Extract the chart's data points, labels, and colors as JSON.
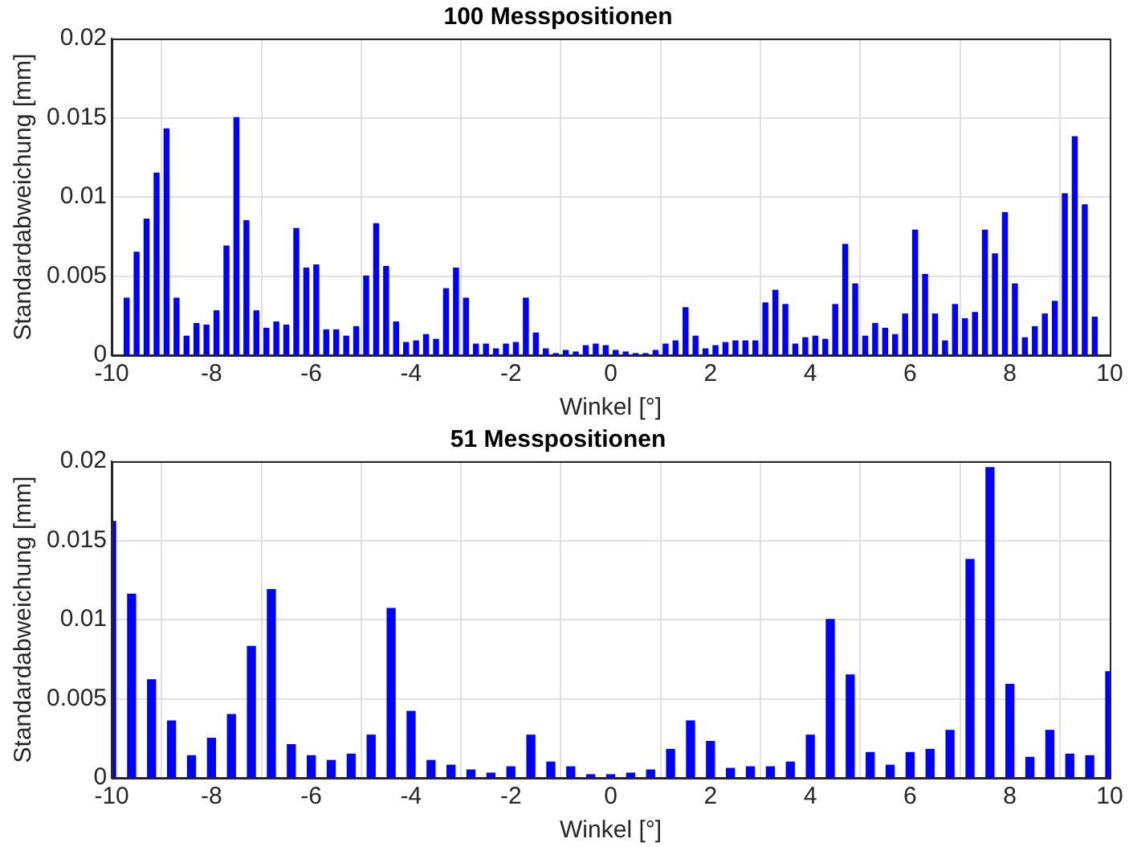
{
  "chart_data": [
    {
      "type": "bar",
      "title": "100 Messpositionen",
      "xlabel": "Winkel [°]",
      "ylabel": "Standardabweichung [mm]",
      "color": "#0000ff",
      "grid": true,
      "x": [
        -9.7,
        -9.5,
        -9.3,
        -9.1,
        -8.9,
        -8.7,
        -8.5,
        -8.3,
        -8.1,
        -7.9,
        -7.7,
        -7.5,
        -7.3,
        -7.1,
        -6.9,
        -6.7,
        -6.5,
        -6.3,
        -6.1,
        -5.9,
        -5.7,
        -5.5,
        -5.3,
        -5.1,
        -4.9,
        -4.7,
        -4.5,
        -4.3,
        -4.1,
        -3.9,
        -3.7,
        -3.5,
        -3.3,
        -3.1,
        -2.9,
        -2.7,
        -2.5,
        -2.3,
        -2.1,
        -1.9,
        -1.7,
        -1.5,
        -1.3,
        -1.1,
        -0.9,
        -0.7,
        -0.5,
        -0.3,
        -0.1,
        0.1,
        0.3,
        0.5,
        0.7,
        0.9,
        1.1,
        1.3,
        1.5,
        1.7,
        1.9,
        2.1,
        2.3,
        2.5,
        2.7,
        2.9,
        3.1,
        3.3,
        3.5,
        3.7,
        3.9,
        4.1,
        4.3,
        4.5,
        4.7,
        4.9,
        5.1,
        5.3,
        5.5,
        5.7,
        5.9,
        6.1,
        6.3,
        6.5,
        6.7,
        6.9,
        7.1,
        7.3,
        7.5,
        7.7,
        7.9,
        8.1,
        8.3,
        8.5,
        8.7,
        8.9,
        9.1,
        9.3,
        9.5,
        9.7
      ],
      "values": [
        0.0036,
        0.0065,
        0.0086,
        0.0115,
        0.0143,
        0.0036,
        0.0012,
        0.002,
        0.0019,
        0.0028,
        0.0069,
        0.015,
        0.0085,
        0.0028,
        0.0017,
        0.0021,
        0.0019,
        0.008,
        0.0055,
        0.0057,
        0.0016,
        0.0016,
        0.0012,
        0.0018,
        0.005,
        0.0083,
        0.0056,
        0.0021,
        0.0008,
        0.0009,
        0.0013,
        0.001,
        0.0042,
        0.0055,
        0.0036,
        0.0007,
        0.0007,
        0.0004,
        0.0007,
        0.0008,
        0.0036,
        0.0014,
        0.0004,
        0.0001,
        0.0003,
        0.0002,
        0.0006,
        0.0007,
        0.0006,
        0.0003,
        0.0002,
        0.0001,
        0.0001,
        0.0003,
        0.0007,
        0.0009,
        0.003,
        0.0012,
        0.0004,
        0.0006,
        0.0008,
        0.0009,
        0.0009,
        0.0009,
        0.0033,
        0.0041,
        0.0032,
        0.0007,
        0.0011,
        0.0012,
        0.001,
        0.0032,
        0.007,
        0.0045,
        0.0012,
        0.002,
        0.0017,
        0.0013,
        0.0026,
        0.0079,
        0.0051,
        0.0026,
        0.0009,
        0.0032,
        0.0023,
        0.0027,
        0.0079,
        0.0064,
        0.009,
        0.0045,
        0.0011,
        0.0018,
        0.0026,
        0.0034,
        0.0102,
        0.0138,
        0.0095,
        0.0024
      ],
      "xlim": [
        -10,
        10
      ],
      "xticks": [
        -10,
        -8,
        -6,
        -4,
        -2,
        0,
        2,
        4,
        6,
        8,
        10
      ],
      "ylim": [
        0,
        0.02
      ],
      "yticks": [
        0,
        0.005,
        0.01,
        0.015,
        0.02
      ]
    },
    {
      "type": "bar",
      "title": "51 Messpositionen",
      "xlabel": "Winkel [°]",
      "ylabel": "Standardabweichung [mm]",
      "color": "#0000ff",
      "grid": true,
      "x": [
        -10,
        -9.6,
        -9.2,
        -8.8,
        -8.4,
        -8,
        -7.6,
        -7.2,
        -6.8,
        -6.4,
        -6,
        -5.6,
        -5.2,
        -4.8,
        -4.4,
        -4,
        -3.6,
        -3.2,
        -2.8,
        -2.4,
        -2,
        -1.6,
        -1.2,
        -0.8,
        -0.4,
        0,
        0.4,
        0.8,
        1.2,
        1.6,
        2,
        2.4,
        2.8,
        3.2,
        3.6,
        4,
        4.4,
        4.8,
        5.2,
        5.6,
        6,
        6.4,
        6.8,
        7.2,
        7.6,
        8,
        8.4,
        8.8,
        9.2,
        9.6,
        10
      ],
      "values": [
        0.0162,
        0.0116,
        0.0062,
        0.0036,
        0.0014,
        0.0025,
        0.004,
        0.0083,
        0.0119,
        0.0021,
        0.0014,
        0.0011,
        0.0015,
        0.0027,
        0.0107,
        0.0042,
        0.0011,
        0.0008,
        0.0005,
        0.0003,
        0.0007,
        0.0027,
        0.001,
        0.0007,
        0.0002,
        0.0002,
        0.0003,
        0.0005,
        0.0018,
        0.0036,
        0.0023,
        0.0006,
        0.0007,
        0.0007,
        0.001,
        0.0027,
        0.01,
        0.0065,
        0.0016,
        0.0008,
        0.0016,
        0.0018,
        0.003,
        0.0138,
        0.0196,
        0.0059,
        0.0013,
        0.003,
        0.0015,
        0.0014,
        0.0067
      ],
      "xlim": [
        -10,
        10
      ],
      "xticks": [
        -10,
        -8,
        -6,
        -4,
        -2,
        0,
        2,
        4,
        6,
        8,
        10
      ],
      "ylim": [
        0,
        0.02
      ],
      "yticks": [
        0,
        0.005,
        0.01,
        0.015,
        0.02
      ]
    }
  ]
}
